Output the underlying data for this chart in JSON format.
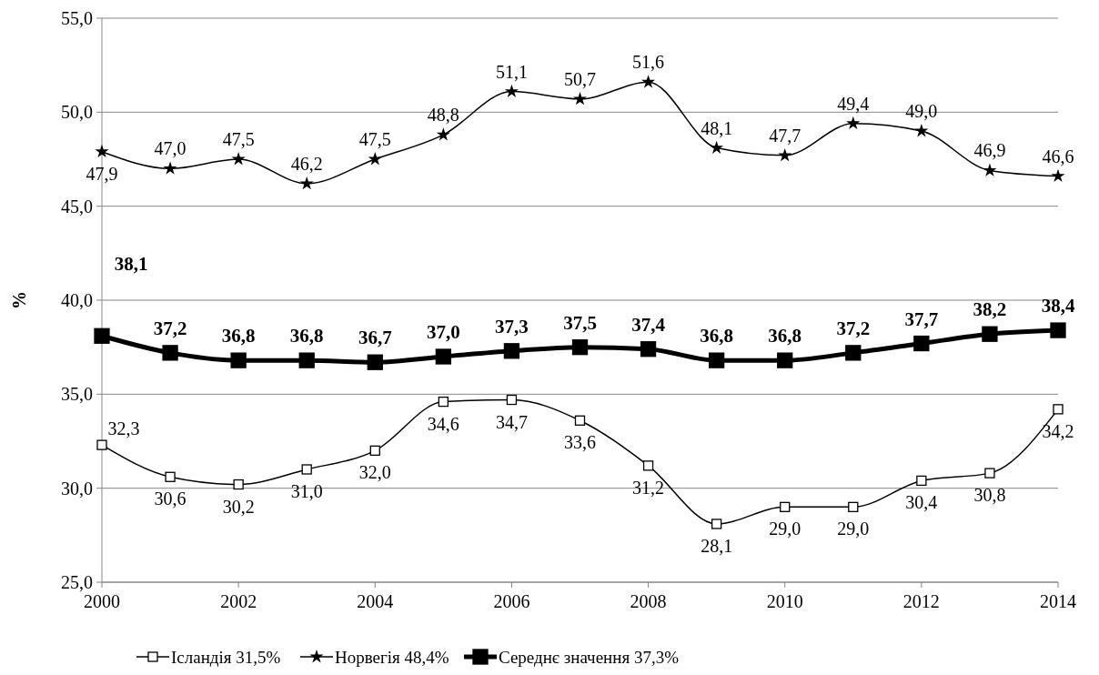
{
  "chart_data": {
    "type": "line",
    "ylabel": "%",
    "x": [
      2000,
      2001,
      2002,
      2003,
      2004,
      2005,
      2006,
      2007,
      2008,
      2009,
      2010,
      2011,
      2012,
      2013,
      2014
    ],
    "xlim": [
      2000,
      2014
    ],
    "xticks": [
      2000,
      2002,
      2004,
      2006,
      2008,
      2010,
      2012,
      2014
    ],
    "ylim": [
      25,
      55
    ],
    "yticks": [
      {
        "value": 25,
        "label": "25,0"
      },
      {
        "value": 30,
        "label": "30,0"
      },
      {
        "value": 35,
        "label": "35,0"
      },
      {
        "value": 40,
        "label": "40,0"
      },
      {
        "value": 45,
        "label": "45,0"
      },
      {
        "value": 50,
        "label": "50,0"
      },
      {
        "value": 55,
        "label": "55,0"
      }
    ],
    "grid": "y",
    "legend": "bottom",
    "line_style": "solid",
    "series": [
      {
        "name": "Ісландія 31,5%",
        "color": "#000000",
        "marker": "square",
        "values": [
          32.3,
          30.6,
          30.2,
          31.0,
          32.0,
          34.6,
          34.7,
          33.6,
          31.2,
          28.1,
          29.0,
          29.0,
          30.4,
          30.8,
          34.2
        ],
        "value_labels": [
          "32,3",
          "30,6",
          "30,2",
          "31,0",
          "32,0",
          "34,6",
          "34,7",
          "33,6",
          "31,2",
          "28,1",
          "29,0",
          "29,0",
          "30,4",
          "30,8",
          "34,2"
        ]
      },
      {
        "name": "Норвегія 48,4%",
        "color": "#000000",
        "marker": "star",
        "values": [
          47.9,
          47.0,
          47.5,
          46.2,
          47.5,
          48.8,
          51.1,
          50.7,
          51.6,
          48.1,
          47.7,
          49.4,
          49.0,
          46.9,
          46.6
        ],
        "value_labels": [
          "47,9",
          "47,0",
          "47,5",
          "46,2",
          "47,5",
          "48,8",
          "51,1",
          "50,7",
          "51,6",
          "48,1",
          "47,7",
          "49,4",
          "49,0",
          "46,9",
          "46,6"
        ]
      },
      {
        "name": "Середнє значення 37,3%",
        "color": "#000000",
        "marker": "square",
        "values": [
          38.1,
          37.2,
          36.8,
          36.8,
          36.7,
          37.0,
          37.3,
          37.5,
          37.4,
          36.8,
          36.8,
          37.2,
          37.7,
          38.2,
          38.4
        ],
        "value_labels": [
          "38,1",
          "37,2",
          "36,8",
          "36,8",
          "36,7",
          "37,0",
          "37,3",
          "37,5",
          "37,4",
          "36,8",
          "36,8",
          "37,2",
          "37,7",
          "38,2",
          "38,4"
        ]
      }
    ]
  }
}
